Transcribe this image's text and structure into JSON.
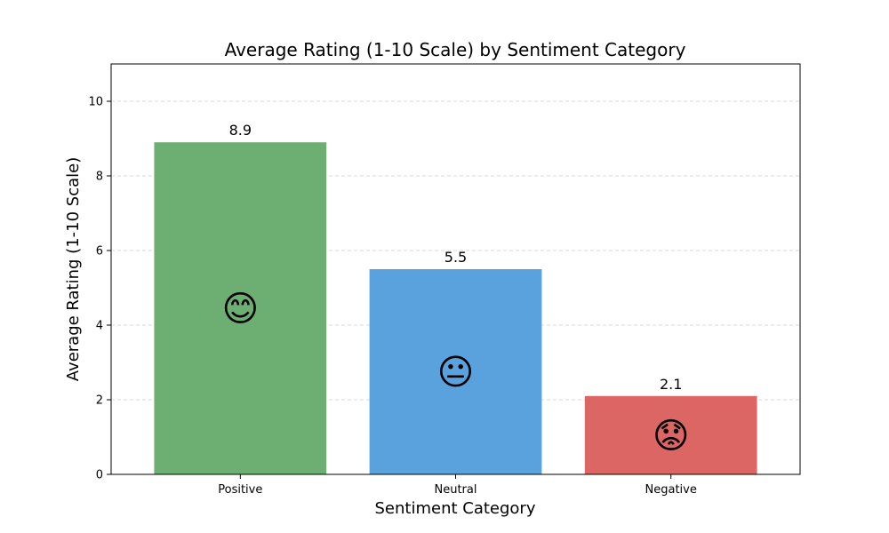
{
  "chart_data": {
    "type": "bar",
    "title": "Average Rating (1-10 Scale) by Sentiment Category",
    "xlabel": "Sentiment Category",
    "ylabel": "Average Rating (1-10 Scale)",
    "categories": [
      "Positive",
      "Neutral",
      "Negative"
    ],
    "values": [
      8.9,
      5.5,
      2.1
    ],
    "value_labels": [
      "8.9",
      "5.5",
      "2.1"
    ],
    "emojis": [
      "😊",
      "😐",
      "😟"
    ],
    "colors": [
      "#6daf72",
      "#5aa2de",
      "#dc6663"
    ],
    "ylim": [
      0,
      11
    ],
    "yticks": [
      0,
      2,
      4,
      6,
      8,
      10
    ],
    "grid": "y-dashed",
    "legend": "none"
  }
}
